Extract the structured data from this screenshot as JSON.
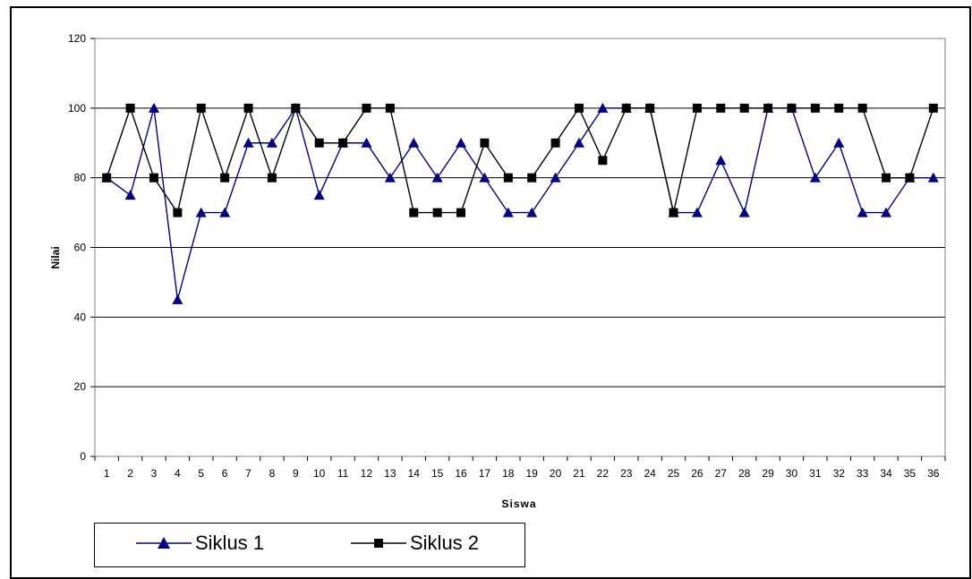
{
  "chart_data": {
    "type": "line",
    "title": "",
    "xlabel": "Siswa",
    "ylabel": "Nilai",
    "ylim": [
      0,
      120
    ],
    "yticks": [
      "0",
      "20",
      "40",
      "60",
      "80",
      "100",
      "120"
    ],
    "categories": [
      "1",
      "2",
      "3",
      "4",
      "5",
      "6",
      "7",
      "8",
      "9",
      "10",
      "11",
      "12",
      "13",
      "14",
      "15",
      "16",
      "17",
      "18",
      "19",
      "20",
      "21",
      "22",
      "23",
      "24",
      "25",
      "26",
      "27",
      "28",
      "29",
      "30",
      "31",
      "32",
      "33",
      "34",
      "35",
      "36"
    ],
    "grid": "horizontal",
    "legend_position": "bottom-left",
    "series": [
      {
        "name": "Siklus 1",
        "color": "#000080",
        "marker": "triangle",
        "values": [
          80,
          75,
          100,
          45,
          70,
          70,
          90,
          90,
          100,
          75,
          90,
          90,
          80,
          90,
          80,
          90,
          80,
          70,
          70,
          80,
          90,
          100,
          100,
          100,
          70,
          70,
          85,
          70,
          100,
          100,
          80,
          90,
          70,
          70,
          80,
          80
        ]
      },
      {
        "name": "Siklus 2",
        "color": "#000000",
        "marker": "square",
        "values": [
          80,
          100,
          80,
          70,
          100,
          80,
          100,
          80,
          100,
          90,
          90,
          100,
          100,
          70,
          70,
          70,
          90,
          80,
          80,
          90,
          100,
          85,
          100,
          100,
          70,
          100,
          100,
          100,
          100,
          100,
          100,
          100,
          100,
          80,
          80,
          100
        ]
      }
    ]
  }
}
